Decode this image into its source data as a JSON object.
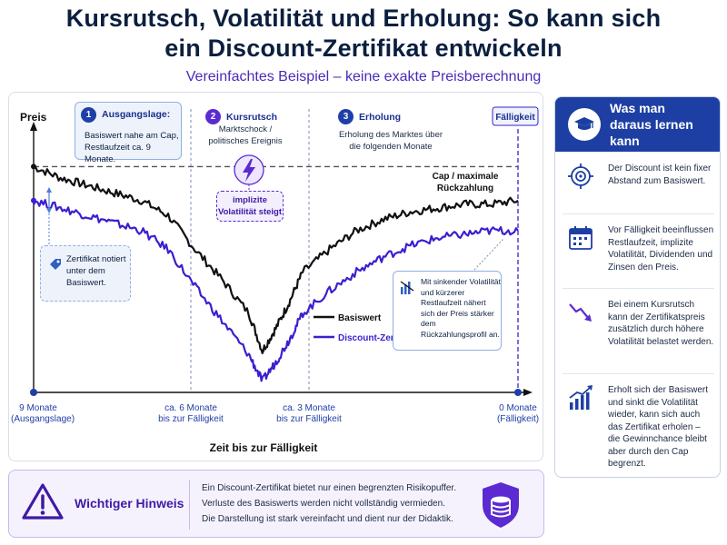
{
  "header": {
    "title_line1": "Kursrutsch, Volatilität und Erholung: So kann sich",
    "title_line2": "ein Discount-Zertifikat entwickeln",
    "subtitle": "Vereinfachtes Beispiel – keine exakte Preisberechnung"
  },
  "chart_data": {
    "type": "line",
    "ylabel": "Preis",
    "xlabel": "Zeit bis zur Fälligkeit",
    "x": [
      9,
      8.5,
      8,
      7.5,
      7,
      6.5,
      6,
      5.5,
      5,
      4.75,
      4.5,
      4.25,
      4,
      3.5,
      3,
      2.5,
      2,
      1.5,
      1,
      0.5,
      0
    ],
    "x_ticks": [
      {
        "value": 9,
        "line1": "9 Monate",
        "line2": "(Ausgangslage)"
      },
      {
        "value": 6,
        "line1": "ca. 6 Monate",
        "line2": "bis zur Fälligkeit"
      },
      {
        "value": 3,
        "line1": "ca. 3 Monate",
        "line2": "bis zur Fälligkeit"
      },
      {
        "value": 0,
        "line1": "0 Monate",
        "line2": "(Fälligkeit)"
      }
    ],
    "cap_label_line1": "Cap / maximale",
    "cap_label_line2": "Rückzahlung",
    "cap_level": 100,
    "ylim": [
      40,
      110
    ],
    "series": [
      {
        "name": "Basiswert",
        "color": "#111111",
        "values": [
          100,
          97,
          95,
          93,
          91,
          87,
          78,
          70,
          61,
          51,
          57,
          64,
          72,
          78,
          83,
          86,
          88,
          89,
          90,
          90,
          91
        ]
      },
      {
        "name": "Discount-Zertifikat",
        "color": "#3b1fd0",
        "values": [
          91,
          89,
          87,
          85,
          83,
          78,
          68,
          59,
          50,
          43,
          48,
          54,
          61,
          67,
          72,
          76,
          79,
          81,
          82,
          83,
          83
        ]
      }
    ],
    "maturity_label": "Fälligkeit",
    "legend_position": "center-right"
  },
  "steps": [
    {
      "num": "1",
      "title": "Ausgangslage:",
      "text_line1": "Basiswert nahe am Cap,",
      "text_line2": "Restlaufzeit ca. 9 Monate."
    },
    {
      "num": "2",
      "title": "Kursrutsch",
      "text_line1": "Marktschock /",
      "text_line2": "politisches Ereignis"
    },
    {
      "num": "3",
      "title": "Erholung",
      "text_line1": "Erholung des Marktes über",
      "text_line2": "die folgenden Monate"
    }
  ],
  "callouts": {
    "volatility": "implizite Volatilität steigt",
    "below": "Zertifikat notiert unter dem Basiswert.",
    "convergence": "Mit sinkender Volatilität und kürzerer Restlaufzeit nähert sich der Preis stärker dem Rückzahlungsprofil an."
  },
  "side": {
    "title": "Was man daraus lernen kann",
    "items": [
      {
        "icon": "target-icon",
        "text": "Der Discount ist kein fixer Abstand zum Basiswert."
      },
      {
        "icon": "calendar-icon",
        "text": "Vor Fälligkeit beeinflussen Restlaufzeit, implizite Volatilität, Dividenden und Zinsen den Preis."
      },
      {
        "icon": "trend-down-icon",
        "text": "Bei einem Kursrutsch kann der Zertifikatspreis zusätzlich durch höhere Volatilität belastet werden."
      },
      {
        "icon": "trend-up-icon",
        "text": "Erholt sich der Basiswert und sinkt die Volatilität wieder, kann sich auch das Zertifikat erholen – die Gewinnchance bleibt aber durch den Cap begrenzt."
      }
    ]
  },
  "notice": {
    "title": "Wichtiger Hinweis",
    "line1": "Ein Discount-Zertifikat bietet nur einen begrenzten Risikopuffer.",
    "line2": "Verluste des Basiswerts werden nicht vollständig vermieden.",
    "line3": "Die Darstellung ist stark vereinfacht und dient nur der Didaktik."
  }
}
